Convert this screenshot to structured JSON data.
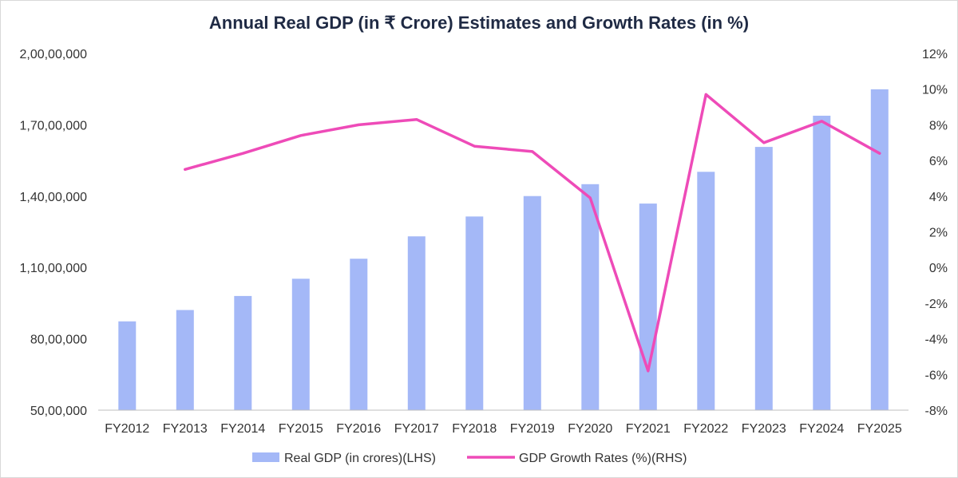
{
  "chart_data": {
    "type": "bar+line",
    "title": "Annual Real GDP (in ₹ Crore) Estimates and Growth Rates (in %)",
    "categories": [
      "FY2012",
      "FY2013",
      "FY2014",
      "FY2015",
      "FY2016",
      "FY2017",
      "FY2018",
      "FY2019",
      "FY2020",
      "FY2021",
      "FY2022",
      "FY2023",
      "FY2024",
      "FY2025"
    ],
    "series": [
      {
        "name": "Real GDP (in crores)(LHS)",
        "type": "bar",
        "axis": "left",
        "color": "#a4b8f7",
        "values": [
          8736000,
          9213000,
          9801000,
          10528000,
          11369000,
          12309000,
          13144000,
          14003000,
          14503000,
          13687000,
          15022000,
          16071000,
          17382000,
          18492000
        ]
      },
      {
        "name": "GDP Growth Rates (%)(RHS)",
        "type": "line",
        "axis": "right",
        "color": "#ee4bb8",
        "values": [
          null,
          5.5,
          6.4,
          7.4,
          8.0,
          8.3,
          6.8,
          6.5,
          3.9,
          -5.8,
          9.7,
          7.0,
          8.2,
          6.4
        ]
      }
    ],
    "left_axis": {
      "ylim": [
        5000000,
        20000000
      ],
      "ticks": [
        5000000,
        8000000,
        11000000,
        14000000,
        17000000,
        20000000
      ],
      "tick_labels": [
        "50,00,000",
        "80,00,000",
        "1,10,00,000",
        "1,40,00,000",
        "1,70,00,000",
        "2,00,00,000"
      ]
    },
    "right_axis": {
      "ylim": [
        -8,
        12
      ],
      "ticks": [
        -8,
        -6,
        -4,
        -2,
        0,
        2,
        4,
        6,
        8,
        10,
        12
      ],
      "tick_labels": [
        "-8%",
        "-6%",
        "-4%",
        "-2%",
        "0%",
        "2%",
        "4%",
        "6%",
        "8%",
        "10%",
        "12%"
      ]
    },
    "grid": false,
    "legend_position": "bottom"
  }
}
